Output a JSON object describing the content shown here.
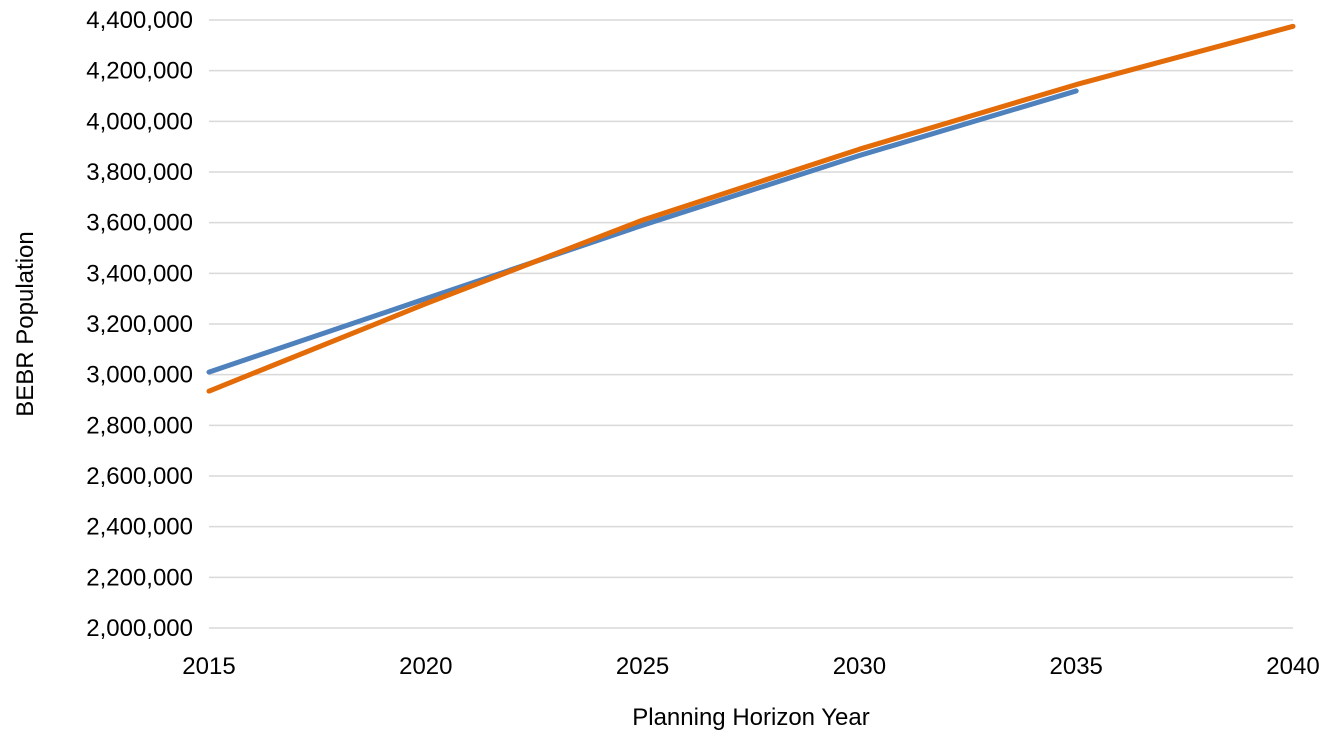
{
  "chart_data": {
    "type": "line",
    "title": "",
    "xlabel": "Planning Horizon Year",
    "ylabel": "BEBR Population",
    "xlim": [
      2015,
      2040
    ],
    "ylim": [
      2000000,
      4400000
    ],
    "x_ticks": [
      2015,
      2020,
      2025,
      2030,
      2035,
      2040
    ],
    "y_ticks": [
      2000000,
      2200000,
      2400000,
      2600000,
      2800000,
      3000000,
      3200000,
      3400000,
      3600000,
      3800000,
      4000000,
      4200000,
      4400000
    ],
    "grid": true,
    "legend": "none",
    "series": [
      {
        "color": "#4f81bd",
        "x": [
          2015,
          2020,
          2025,
          2030,
          2035
        ],
        "y": [
          3010000,
          3300000,
          3590000,
          3865000,
          4120000
        ]
      },
      {
        "color": "#e36c09",
        "x": [
          2015,
          2020,
          2025,
          2030,
          2035,
          2040
        ],
        "y": [
          2935000,
          3280000,
          3610000,
          3890000,
          4145000,
          4375000
        ]
      }
    ]
  }
}
